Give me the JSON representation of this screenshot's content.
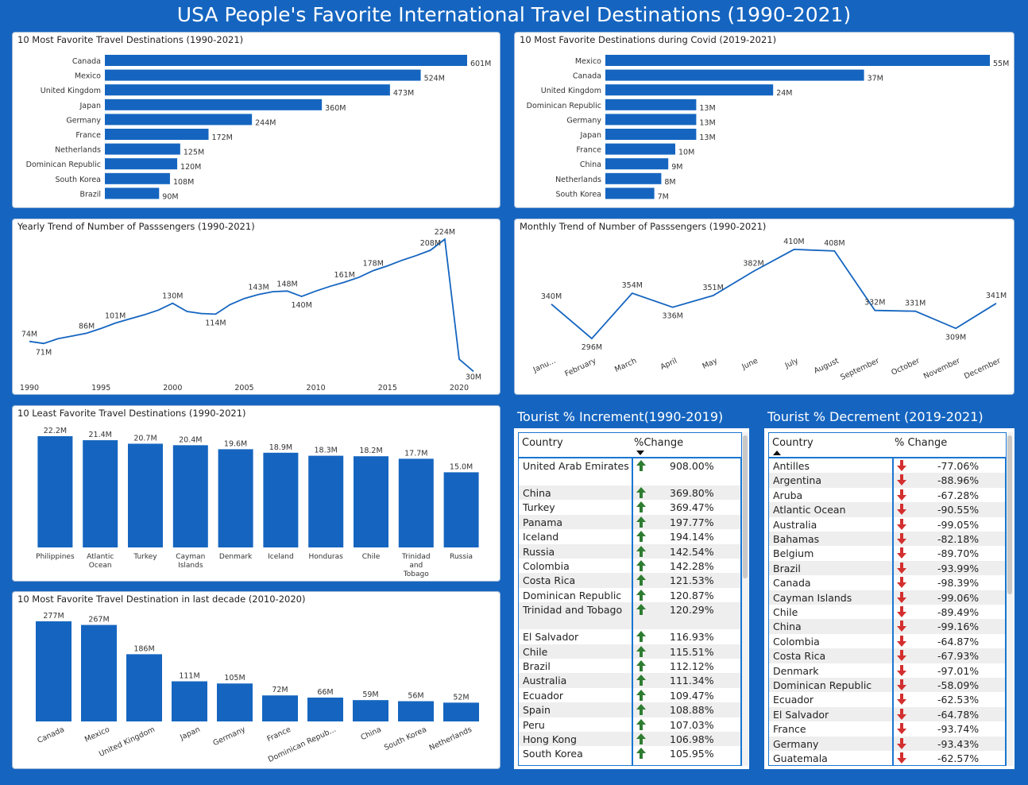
{
  "title": "USA People's Favorite International Travel Destinations (1990-2021)",
  "colors": {
    "accent": "#1565c0",
    "bar": "#1565c0",
    "up": "#2e7d32",
    "down": "#d32f2f"
  },
  "panels": {
    "fav": "10 Most Favorite Travel Destinations (1990-2021)",
    "covid": "10 Most Favorite Destinations during Covid (2019-2021)",
    "yearly": "Yearly Trend of Number of Passsengers (1990-2021)",
    "monthly": "Monthly Trend of Number of Passsengers (1990-2021)",
    "least": "10 Least Favorite Travel Destinations (1990-2021)",
    "decade": "10 Most Favorite Travel Destination in last decade (2010-2020)"
  },
  "chart_data": [
    {
      "id": "fav",
      "type": "bar",
      "orientation": "horizontal",
      "title": "10 Most Favorite Travel Destinations (1990-2021)",
      "categories": [
        "Canada",
        "Mexico",
        "United Kingdom",
        "Japan",
        "Germany",
        "France",
        "Netherlands",
        "Dominican Republic",
        "South Korea",
        "Brazil"
      ],
      "values": [
        601,
        524,
        473,
        360,
        244,
        172,
        125,
        120,
        108,
        90
      ],
      "labels": [
        "601M",
        "524M",
        "473M",
        "360M",
        "244M",
        "172M",
        "125M",
        "120M",
        "108M",
        "90M"
      ],
      "xlim": [
        0,
        601
      ]
    },
    {
      "id": "covid",
      "type": "bar",
      "orientation": "horizontal",
      "title": "10 Most Favorite Destinations during Covid (2019-2021)",
      "categories": [
        "Mexico",
        "Canada",
        "United Kingdom",
        "Dominican Republic",
        "Germany",
        "Japan",
        "France",
        "China",
        "Netherlands",
        "South Korea"
      ],
      "values": [
        55,
        37,
        24,
        13,
        13,
        13,
        10,
        9,
        8,
        7
      ],
      "labels": [
        "55M",
        "37M",
        "24M",
        "13M",
        "13M",
        "13M",
        "10M",
        "9M",
        "8M",
        "7M"
      ],
      "xlim": [
        0,
        55
      ]
    },
    {
      "id": "yearly",
      "type": "line",
      "title": "Yearly Trend of Number of Passsengers (1990-2021)",
      "x": [
        1990,
        1991,
        1992,
        1993,
        1994,
        1995,
        1996,
        1997,
        1998,
        1999,
        2000,
        2001,
        2002,
        2003,
        2004,
        2005,
        2006,
        2007,
        2008,
        2009,
        2010,
        2011,
        2012,
        2013,
        2014,
        2015,
        2016,
        2017,
        2018,
        2019,
        2020,
        2021
      ],
      "values": [
        74,
        71,
        78,
        82,
        86,
        93,
        101,
        107,
        113,
        120,
        130,
        118,
        115,
        114,
        128,
        137,
        143,
        147,
        148,
        140,
        148,
        155,
        161,
        168,
        178,
        185,
        193,
        200,
        208,
        224,
        48,
        30
      ],
      "point_labels": [
        {
          "x": 1990,
          "text": "74M"
        },
        {
          "x": 1991,
          "text": "71M"
        },
        {
          "x": 1994,
          "text": "86M"
        },
        {
          "x": 1996,
          "text": "101M"
        },
        {
          "x": 2000,
          "text": "130M"
        },
        {
          "x": 2003,
          "text": "114M"
        },
        {
          "x": 2006,
          "text": "143M"
        },
        {
          "x": 2008,
          "text": "148M"
        },
        {
          "x": 2009,
          "text": "140M"
        },
        {
          "x": 2012,
          "text": "161M"
        },
        {
          "x": 2014,
          "text": "178M"
        },
        {
          "x": 2018,
          "text": "208M"
        },
        {
          "x": 2019,
          "text": "224M"
        },
        {
          "x": 2021,
          "text": "30M"
        }
      ],
      "xticks": [
        1990,
        1995,
        2000,
        2005,
        2010,
        2015,
        2020
      ],
      "ylim": [
        20,
        230
      ]
    },
    {
      "id": "monthly",
      "type": "line",
      "title": "Monthly Trend of Number of Passsengers (1990-2021)",
      "categories": [
        "Janu...",
        "February",
        "March",
        "April",
        "May",
        "June",
        "July",
        "August",
        "September",
        "October",
        "November",
        "December"
      ],
      "values": [
        340,
        296,
        354,
        336,
        351,
        382,
        410,
        408,
        332,
        331,
        309,
        341
      ],
      "labels": [
        "340M",
        "296M",
        "354M",
        "336M",
        "351M",
        "382M",
        "410M",
        "408M",
        "332M",
        "331M",
        "309M",
        "341M"
      ],
      "ylim": [
        290,
        415
      ]
    },
    {
      "id": "least",
      "type": "bar",
      "orientation": "vertical",
      "title": "10 Least Favorite Travel Destinations (1990-2021)",
      "categories": [
        "Philippines",
        "Atlantic Ocean",
        "Turkey",
        "Cayman Islands",
        "Denmark",
        "Iceland",
        "Honduras",
        "Chile",
        "Trinidad and Tobago",
        "Russia"
      ],
      "values": [
        22.2,
        21.4,
        20.7,
        20.4,
        19.6,
        18.9,
        18.3,
        18.2,
        17.7,
        15.0
      ],
      "labels": [
        "22.2M",
        "21.4M",
        "20.7M",
        "20.4M",
        "19.6M",
        "18.9M",
        "18.3M",
        "18.2M",
        "17.7M",
        "15.0M"
      ],
      "ylim": [
        0,
        22.2
      ]
    },
    {
      "id": "decade",
      "type": "bar",
      "orientation": "vertical",
      "title": "10 Most Favorite Travel Destination in last decade (2010-2020)",
      "categories": [
        "Canada",
        "Mexico",
        "United Kingdom",
        "Japan",
        "Germany",
        "France",
        "Dominican Repub...",
        "China",
        "South Korea",
        "Netherlands"
      ],
      "values": [
        277,
        267,
        186,
        111,
        105,
        72,
        66,
        59,
        56,
        52
      ],
      "labels": [
        "277M",
        "267M",
        "186M",
        "111M",
        "105M",
        "72M",
        "66M",
        "59M",
        "56M",
        "52M"
      ],
      "ylim": [
        0,
        277
      ]
    }
  ],
  "increment": {
    "heading": "Tourist % Increment(1990-2019)",
    "col_country": "Country",
    "col_change": "%Change",
    "rows": [
      {
        "country": "United Arab Emirates",
        "change": "908.00%"
      },
      {
        "country": "China",
        "change": "369.80%"
      },
      {
        "country": "Turkey",
        "change": "369.47%"
      },
      {
        "country": "Panama",
        "change": "197.77%"
      },
      {
        "country": "Iceland",
        "change": "194.14%"
      },
      {
        "country": "Russia",
        "change": "142.54%"
      },
      {
        "country": "Colombia",
        "change": "142.28%"
      },
      {
        "country": "Costa Rica",
        "change": "121.53%"
      },
      {
        "country": "Dominican Republic",
        "change": "120.87%"
      },
      {
        "country": "Trinidad and Tobago",
        "change": "120.29%"
      },
      {
        "country": "El Salvador",
        "change": "116.93%"
      },
      {
        "country": "Chile",
        "change": "115.51%"
      },
      {
        "country": "Brazil",
        "change": "112.12%"
      },
      {
        "country": "Australia",
        "change": "111.34%"
      },
      {
        "country": "Ecuador",
        "change": "109.47%"
      },
      {
        "country": "Spain",
        "change": "108.88%"
      },
      {
        "country": "Peru",
        "change": "107.03%"
      },
      {
        "country": "Hong Kong",
        "change": "106.98%"
      },
      {
        "country": "South Korea",
        "change": "105.95%"
      }
    ]
  },
  "decrement": {
    "heading": "Tourist % Decrement (2019-2021)",
    "col_country": "Country",
    "col_change": "% Change",
    "rows": [
      {
        "country": "Antilles",
        "change": "-77.06%"
      },
      {
        "country": "Argentina",
        "change": "-88.96%"
      },
      {
        "country": "Aruba",
        "change": "-67.28%"
      },
      {
        "country": "Atlantic Ocean",
        "change": "-90.55%"
      },
      {
        "country": "Australia",
        "change": "-99.05%"
      },
      {
        "country": "Bahamas",
        "change": "-82.18%"
      },
      {
        "country": "Belgium",
        "change": "-89.70%"
      },
      {
        "country": "Brazil",
        "change": "-93.99%"
      },
      {
        "country": "Canada",
        "change": "-98.39%"
      },
      {
        "country": "Cayman Islands",
        "change": "-99.06%"
      },
      {
        "country": "Chile",
        "change": "-89.49%"
      },
      {
        "country": "China",
        "change": "-99.16%"
      },
      {
        "country": "Colombia",
        "change": "-64.87%"
      },
      {
        "country": "Costa Rica",
        "change": "-67.93%"
      },
      {
        "country": "Denmark",
        "change": "-97.01%"
      },
      {
        "country": "Dominican Republic",
        "change": "-58.09%"
      },
      {
        "country": "Ecuador",
        "change": "-62.53%"
      },
      {
        "country": "El Salvador",
        "change": "-64.78%"
      },
      {
        "country": "France",
        "change": "-93.74%"
      },
      {
        "country": "Germany",
        "change": "-93.43%"
      },
      {
        "country": "Guatemala",
        "change": "-62.57%"
      }
    ]
  }
}
